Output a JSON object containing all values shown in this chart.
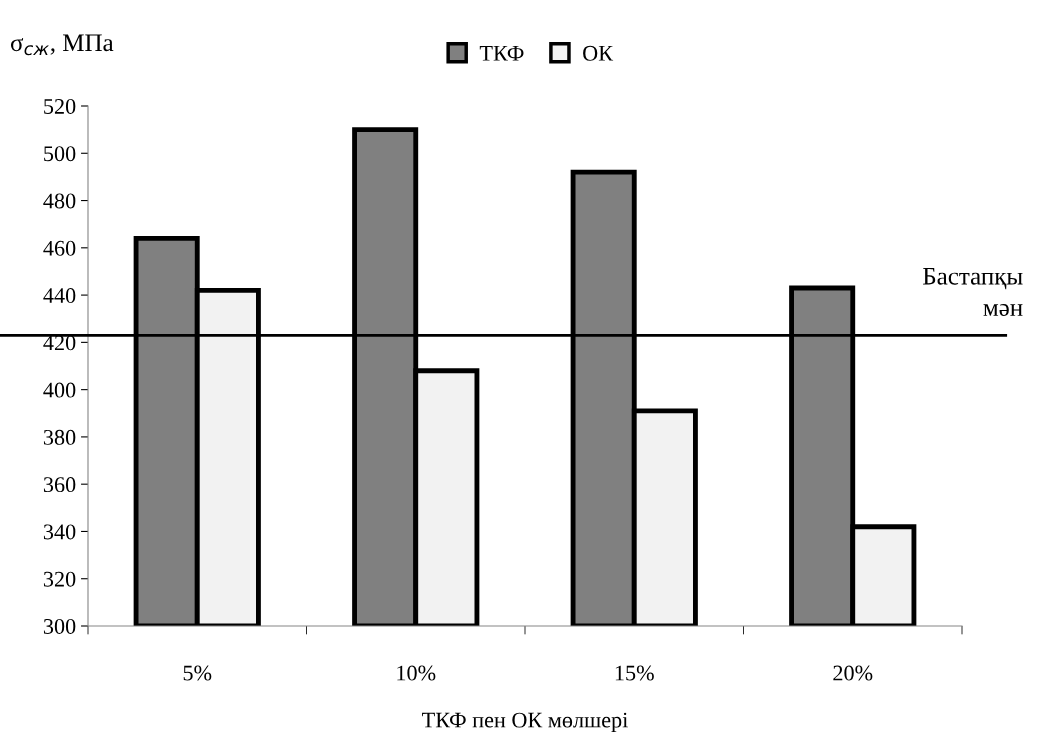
{
  "chart_data": {
    "type": "bar",
    "ylabel": "σ$_{сж}$, МПа",
    "xlabel": "ТКФ пен ОК мөлшері",
    "categories": [
      "5%",
      "10%",
      "15%",
      "20%"
    ],
    "series": [
      {
        "name": "ТКФ",
        "color": "#808080",
        "values": [
          464,
          510,
          492,
          443
        ]
      },
      {
        "name": "ОК",
        "color": "#f2f2f2",
        "values": [
          442,
          408,
          391,
          342
        ]
      }
    ],
    "ylim": [
      300,
      520
    ],
    "yticks": [
      300,
      320,
      340,
      360,
      380,
      400,
      420,
      440,
      460,
      480,
      500,
      520
    ],
    "ref_lines": [
      {
        "axis": "y",
        "value": 423,
        "label": "Бастапқы\nмән",
        "color": "#000000",
        "line_style": "solid"
      }
    ],
    "grid": false,
    "legend": "top"
  }
}
